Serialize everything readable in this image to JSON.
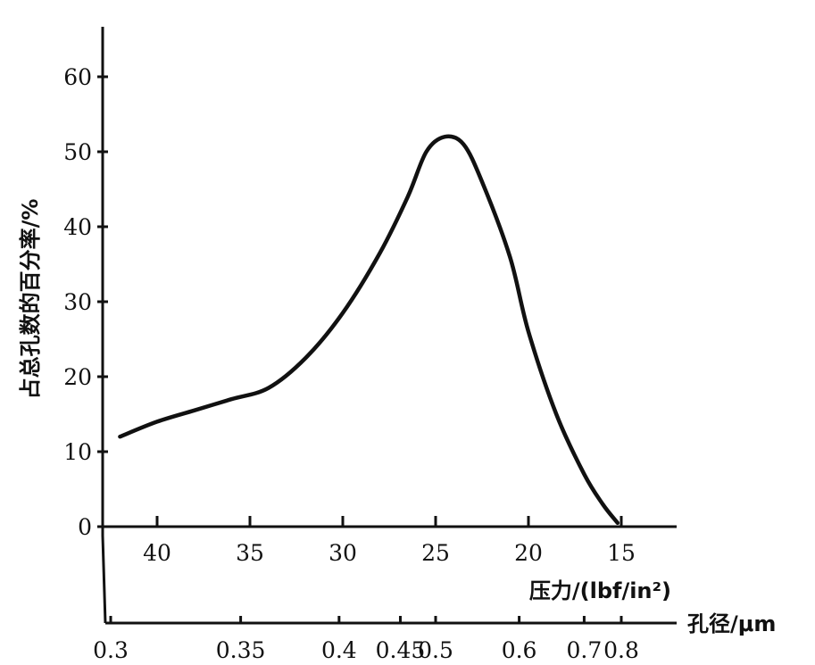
{
  "chart_data": {
    "type": "line",
    "title": "",
    "ylabel": "占总孔数的百分率/%",
    "xlabel": "压力/(lbf/in²)",
    "x2label": "孔径/μm",
    "ylim": [
      0,
      60
    ],
    "xlim": [
      42.5,
      12.5
    ],
    "x_reversed": true,
    "grid": false,
    "y_ticks": [
      0,
      10,
      20,
      30,
      40,
      50,
      60
    ],
    "x_ticks": [
      40,
      35,
      30,
      25,
      20,
      15
    ],
    "x2_ticks": [
      "0.3",
      "0.35",
      "0.4",
      "0.45",
      "0.5",
      "0.6",
      "0.7",
      "0.8"
    ],
    "x2_tick_pressures": [
      42.5,
      35.5,
      30.2,
      26.9,
      25.0,
      20.5,
      17.0,
      15.0
    ],
    "series": [
      {
        "name": "",
        "x": [
          42.0,
          40.0,
          38.0,
          36.0,
          34.0,
          32.0,
          30.0,
          28.0,
          26.5,
          25.5,
          24.5,
          23.5,
          22.5,
          21.0,
          20.0,
          18.5,
          17.0,
          16.0,
          15.2
        ],
        "y": [
          12,
          14,
          15.5,
          17,
          18.5,
          22.5,
          28.5,
          36.5,
          44,
          50,
          52,
          51,
          46,
          36,
          26,
          15,
          7,
          3,
          0.5
        ]
      }
    ]
  }
}
